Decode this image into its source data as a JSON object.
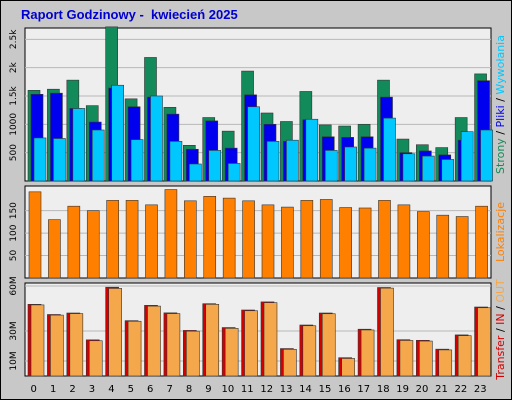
{
  "title": "Raport Godzinowy -  kwiecień 2025",
  "colors": {
    "background": "#c8c8c8",
    "plot_background": "#eeeeee",
    "title": "#0000d0",
    "visits": "#128a5a",
    "pages": "#0000ee",
    "files": "#00c8ff",
    "hits": "#ff7f00",
    "transfer_in": "#d40000",
    "transfer_out": "#f5a84b"
  },
  "chart_data": [
    {
      "type": "bar",
      "name": "traffic",
      "categories": [
        "0",
        "1",
        "2",
        "3",
        "4",
        "5",
        "6",
        "7",
        "8",
        "9",
        "10",
        "11",
        "12",
        "13",
        "14",
        "15",
        "16",
        "17",
        "18",
        "19",
        "20",
        "21",
        "22",
        "23"
      ],
      "ylim": [
        0,
        2700
      ],
      "yticks": [
        500,
        1000,
        1500,
        2000,
        2500
      ],
      "ytick_labels": [
        "500",
        "1000",
        "1.5k",
        "2k",
        "2.5k"
      ],
      "grid": true,
      "series": [
        {
          "name": "Strony",
          "color": "#128a5a",
          "values": [
            1600,
            1620,
            1780,
            1330,
            2720,
            1450,
            2180,
            1300,
            630,
            1120,
            880,
            1940,
            1200,
            1050,
            1580,
            990,
            970,
            1000,
            1780,
            740,
            640,
            590,
            1120,
            1890
          ]
        },
        {
          "name": "Pliki",
          "color": "#0000ee",
          "values": [
            1530,
            1550,
            1280,
            1040,
            1640,
            1310,
            1480,
            1180,
            560,
            1060,
            580,
            1520,
            1000,
            700,
            1080,
            780,
            770,
            780,
            1480,
            500,
            530,
            460,
            720,
            1770
          ]
        },
        {
          "name": "Wywołania",
          "color": "#00c8ff",
          "values": [
            760,
            750,
            1280,
            900,
            1690,
            730,
            1500,
            700,
            300,
            540,
            310,
            1310,
            700,
            720,
            1090,
            540,
            600,
            580,
            1110,
            480,
            440,
            380,
            870,
            900
          ]
        }
      ],
      "right_label": [
        "Strony",
        "/",
        "Pliki",
        "/",
        "Wywołania"
      ]
    },
    {
      "type": "bar",
      "name": "hits",
      "categories": [
        "0",
        "1",
        "2",
        "3",
        "4",
        "5",
        "6",
        "7",
        "8",
        "9",
        "10",
        "11",
        "12",
        "13",
        "14",
        "15",
        "16",
        "17",
        "18",
        "19",
        "20",
        "21",
        "22",
        "23"
      ],
      "ylim": [
        0,
        205
      ],
      "yticks": [
        50,
        100,
        150
      ],
      "ytick_labels": [
        "50",
        "100",
        "150"
      ],
      "grid": true,
      "series": [
        {
          "name": "Lokalizacje",
          "color": "#ff7f00",
          "values": [
            192,
            130,
            160,
            150,
            173,
            173,
            163,
            197,
            172,
            182,
            178,
            172,
            163,
            158,
            173,
            175,
            157,
            156,
            173,
            163,
            148,
            140,
            137,
            160
          ]
        }
      ],
      "right_label": [
        "Lokalizacje"
      ]
    },
    {
      "type": "bar",
      "name": "transfer",
      "categories": [
        "0",
        "1",
        "2",
        "3",
        "4",
        "5",
        "6",
        "7",
        "8",
        "9",
        "10",
        "11",
        "12",
        "13",
        "14",
        "15",
        "16",
        "17",
        "18",
        "19",
        "20",
        "21",
        "22",
        "23"
      ],
      "ylim": [
        0,
        62
      ],
      "yticks": [
        10,
        30,
        60
      ],
      "ytick_labels": [
        "10M",
        "30M",
        "60M"
      ],
      "grid": true,
      "series": [
        {
          "name": "IN",
          "color": "#d40000",
          "values": [
            47.8,
            41.0,
            42.0,
            24.1,
            59.2,
            36.9,
            47.1,
            42.1,
            30.4,
            48.2,
            32.3,
            44.0,
            49.4,
            18.3,
            34.0,
            42.0,
            12.2,
            31.2,
            59.0,
            24.2,
            23.8,
            17.9,
            27.4,
            46.0
          ]
        },
        {
          "name": "OUT",
          "color": "#f5a84b",
          "values": [
            47.4,
            40.6,
            41.6,
            23.5,
            58.4,
            36.5,
            46.6,
            41.6,
            29.9,
            47.8,
            31.8,
            43.5,
            48.9,
            17.8,
            33.5,
            41.5,
            11.7,
            30.7,
            58.6,
            23.7,
            23.3,
            17.4,
            26.9,
            45.5
          ]
        }
      ],
      "right_label": [
        "Transfer",
        "/",
        "IN",
        "/",
        "OUT"
      ]
    }
  ]
}
